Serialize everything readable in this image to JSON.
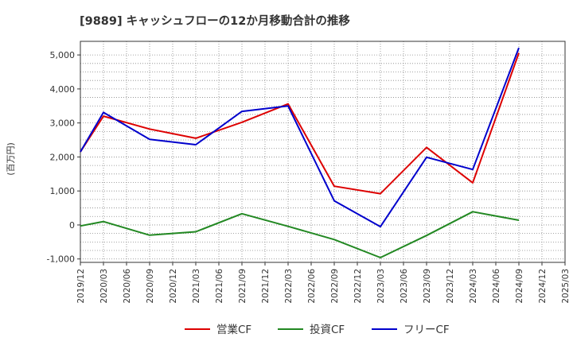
{
  "chart_data": {
    "type": "line",
    "title": "[9889]  キャッシュフローの12か月移動合計の推移",
    "ylabel": "(百万円)",
    "xlabel": "",
    "ylim": [
      -1100,
      5400
    ],
    "yticks": [
      -1000,
      0,
      1000,
      2000,
      3000,
      4000,
      5000
    ],
    "ytick_labels": [
      "-1,000",
      "0",
      "1,000",
      "2,000",
      "3,000",
      "4,000",
      "5,000"
    ],
    "xticks": [
      "2019/12",
      "2020/03",
      "2020/06",
      "2020/09",
      "2020/12",
      "2021/03",
      "2021/06",
      "2021/09",
      "2021/12",
      "2022/03",
      "2022/06",
      "2022/09",
      "2022/12",
      "2023/03",
      "2023/06",
      "2023/09",
      "2023/12",
      "2024/03",
      "2024/06",
      "2024/09",
      "2024/12",
      "2025/03"
    ],
    "grid": true,
    "legend_position": "bottom",
    "series": [
      {
        "name": "営業CF",
        "color": "#dd0000",
        "points": [
          {
            "x": "2019/12",
            "y": 2150
          },
          {
            "x": "2020/03",
            "y": 3200
          },
          {
            "x": "2020/09",
            "y": 2820
          },
          {
            "x": "2021/03",
            "y": 2550
          },
          {
            "x": "2021/09",
            "y": 3020
          },
          {
            "x": "2022/03",
            "y": 3560
          },
          {
            "x": "2022/09",
            "y": 1140
          },
          {
            "x": "2023/03",
            "y": 920
          },
          {
            "x": "2023/09",
            "y": 2280
          },
          {
            "x": "2024/03",
            "y": 1240
          },
          {
            "x": "2024/09",
            "y": 5060
          }
        ]
      },
      {
        "name": "投資CF",
        "color": "#228822",
        "points": [
          {
            "x": "2019/12",
            "y": -30
          },
          {
            "x": "2020/03",
            "y": 100
          },
          {
            "x": "2020/09",
            "y": -300
          },
          {
            "x": "2021/03",
            "y": -200
          },
          {
            "x": "2021/09",
            "y": 330
          },
          {
            "x": "2022/03",
            "y": -40
          },
          {
            "x": "2022/09",
            "y": -430
          },
          {
            "x": "2023/03",
            "y": -960
          },
          {
            "x": "2023/09",
            "y": -310
          },
          {
            "x": "2024/03",
            "y": 390
          },
          {
            "x": "2024/09",
            "y": 140
          }
        ]
      },
      {
        "name": "フリーCF",
        "color": "#0000cc",
        "points": [
          {
            "x": "2019/12",
            "y": 2150
          },
          {
            "x": "2020/03",
            "y": 3310
          },
          {
            "x": "2020/09",
            "y": 2520
          },
          {
            "x": "2021/03",
            "y": 2360
          },
          {
            "x": "2021/09",
            "y": 3340
          },
          {
            "x": "2022/03",
            "y": 3500
          },
          {
            "x": "2022/09",
            "y": 710
          },
          {
            "x": "2023/03",
            "y": -50
          },
          {
            "x": "2023/09",
            "y": 1990
          },
          {
            "x": "2024/03",
            "y": 1630
          },
          {
            "x": "2024/09",
            "y": 5210
          }
        ]
      }
    ]
  }
}
